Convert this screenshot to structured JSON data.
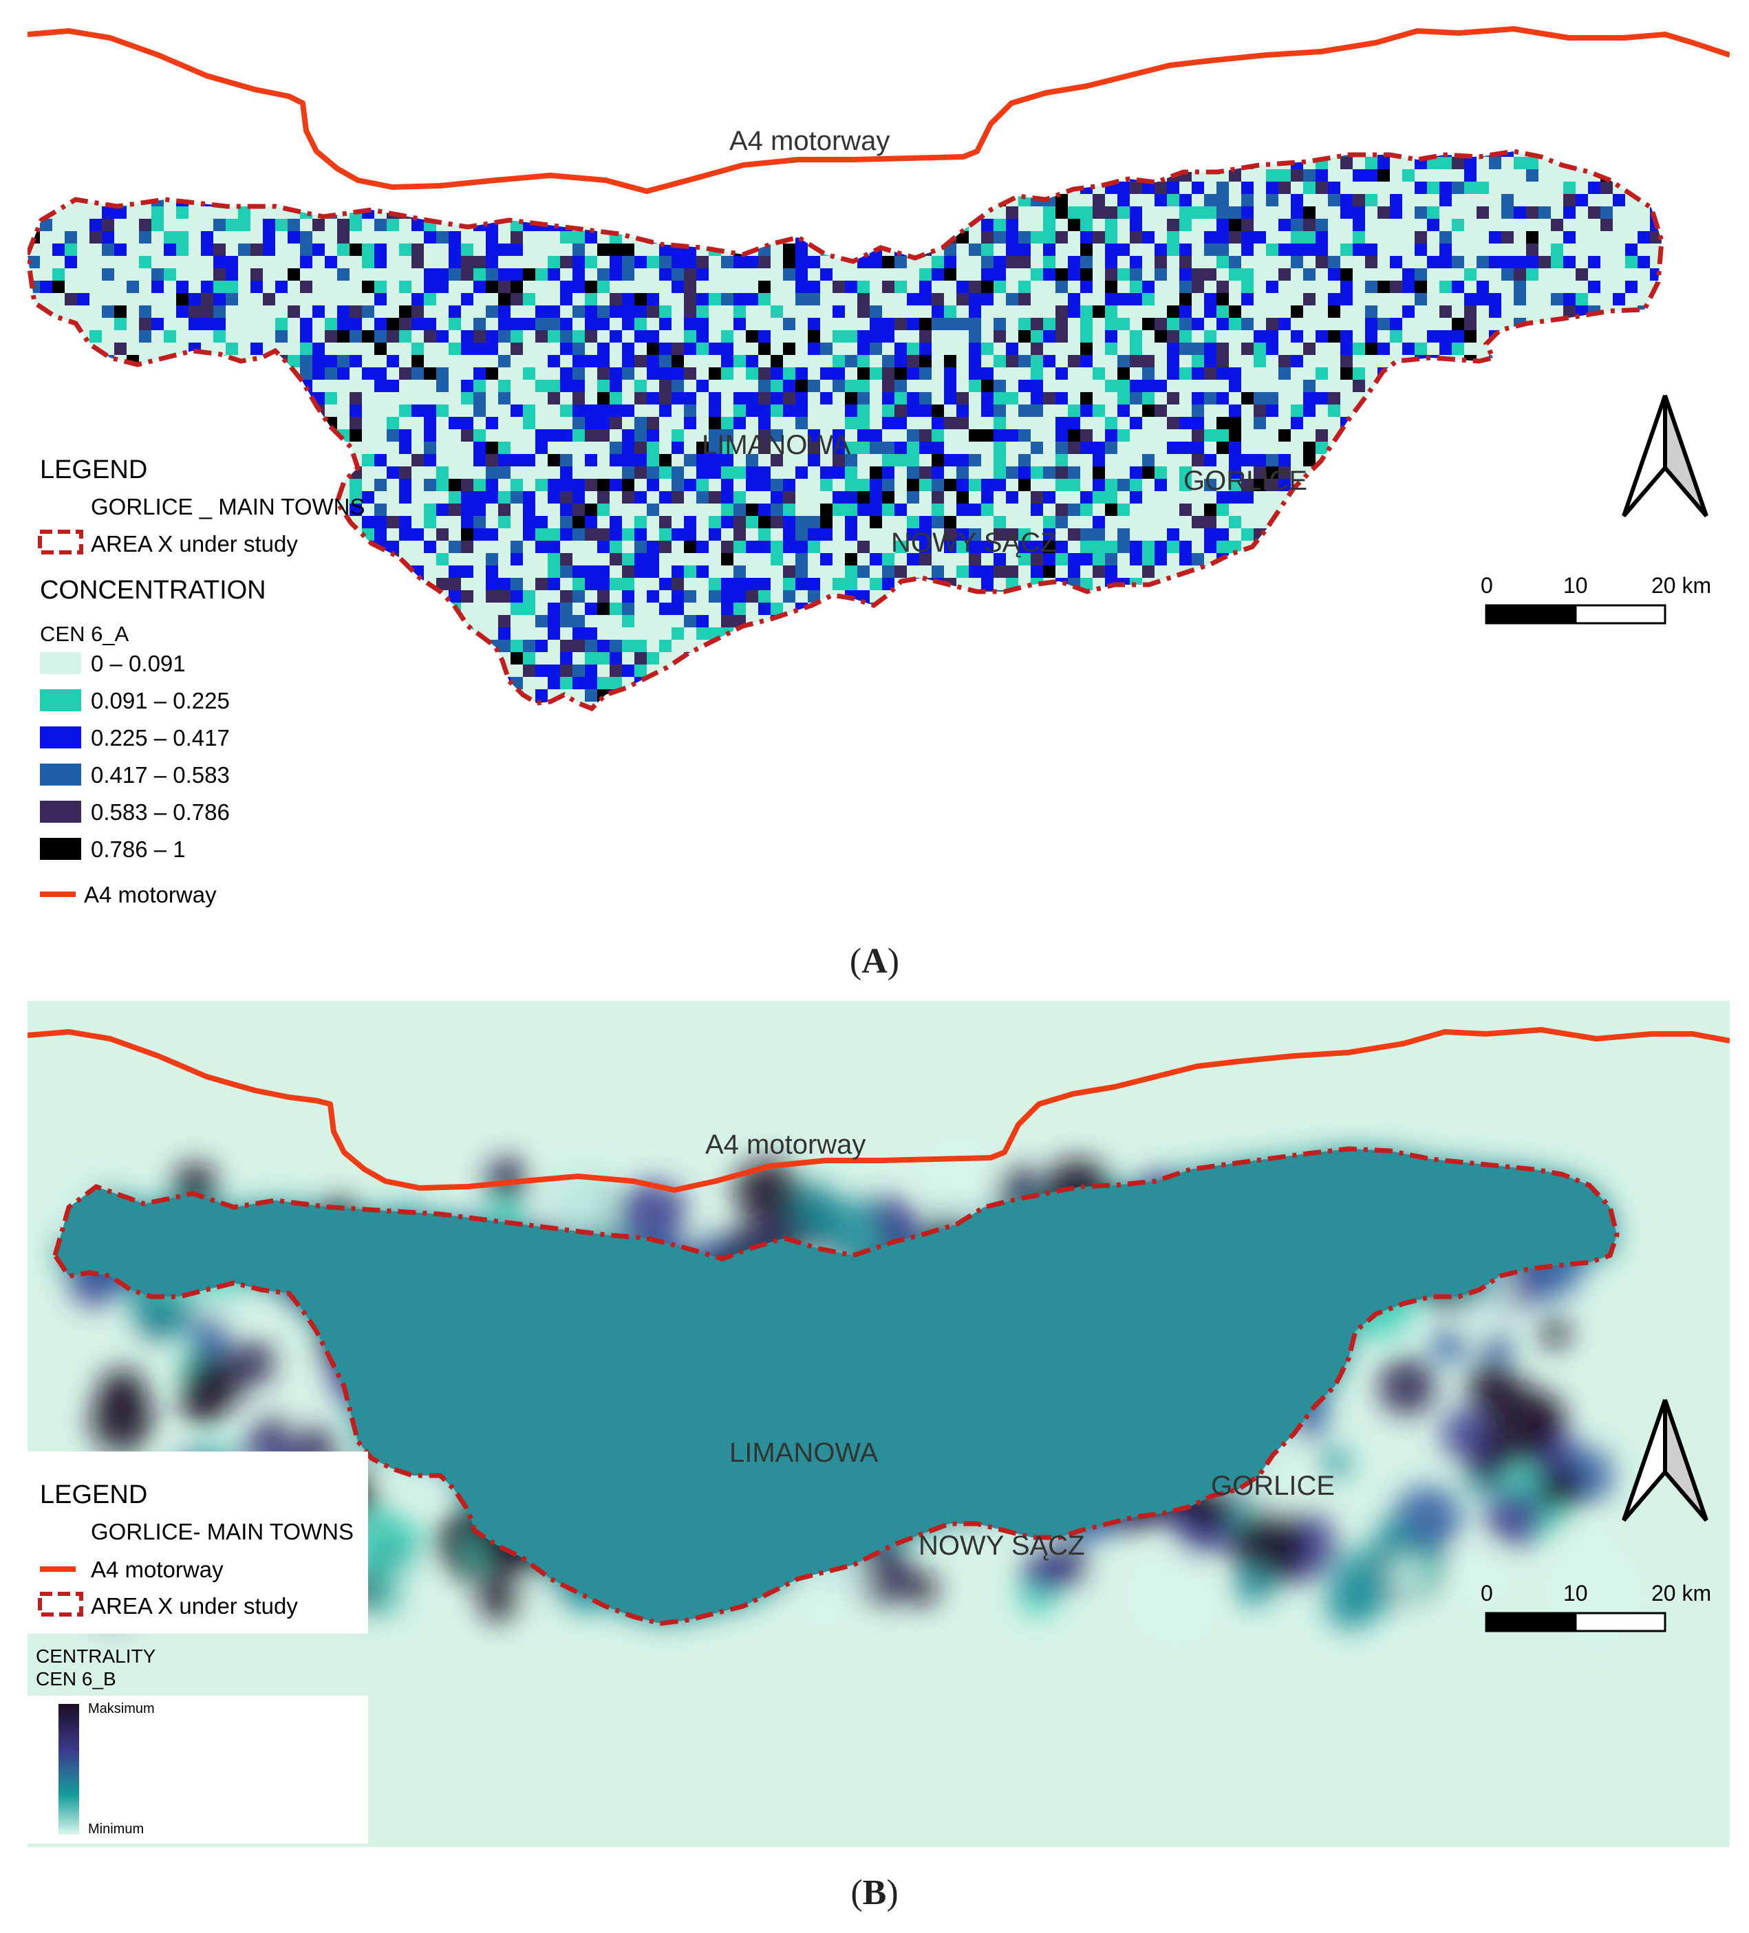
{
  "panel_a": {
    "motorway_label": "A4 motorway",
    "towns": [
      "LIMANOWA",
      "NOWY SĄCZ",
      "GORLICE"
    ],
    "legend": {
      "title": "LEGEND",
      "main_towns": "GORLICE _ MAIN TOWNS",
      "area": "AREA  X under study",
      "concentration_title": "CONCENTRATION",
      "layer_name": "CEN 6_A",
      "classes": [
        {
          "label": "0 – 0.091",
          "color": "#d5f3e6"
        },
        {
          "label": "0.091 – 0.225",
          "color": "#1fcfb4"
        },
        {
          "label": "0.225 – 0.417",
          "color": "#0a14e6"
        },
        {
          "label": "0.417 – 0.583",
          "color": "#1f5ea8"
        },
        {
          "label": "0.583 – 0.786",
          "color": "#3a2a5c"
        },
        {
          "label": "0.786 – 1",
          "color": "#000000"
        }
      ],
      "motorway": "A4 motorway"
    },
    "scale": {
      "ticks": [
        "0",
        "10",
        "20 km"
      ]
    }
  },
  "panel_b": {
    "motorway_label": "A4 motorway",
    "towns": [
      "LIMANOWA",
      "NOWY SĄCZ",
      "GORLICE"
    ],
    "legend": {
      "title": "LEGEND",
      "main_towns": "GORLICE- MAIN TOWNS",
      "motorway": "A4 motorway",
      "area": "AREA X under study",
      "centrality_title": "CENTRALITY",
      "layer_name": "CEN 6_B",
      "ramp_max": "Maksimum",
      "ramp_min": "Minimum"
    },
    "scale": {
      "ticks": [
        "0",
        "10",
        "20 km"
      ]
    },
    "background_color": "#d6f3e6"
  },
  "captions": {
    "a": "A",
    "b": "B"
  },
  "colors": {
    "motorway": "#f03c14",
    "boundary": "#c21e1e"
  }
}
